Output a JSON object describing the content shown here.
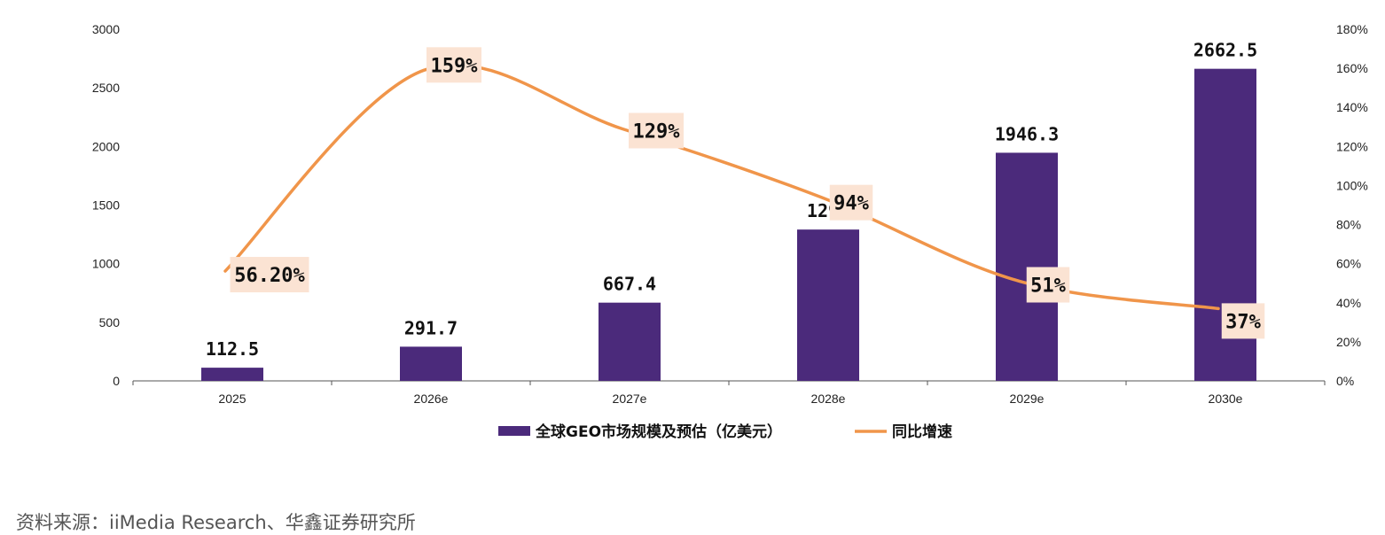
{
  "chart_data": {
    "type": "bar",
    "categories": [
      "2025",
      "2026e",
      "2027e",
      "2028e",
      "2029e",
      "2030e"
    ],
    "series": [
      {
        "name": "全球GEO市场规模及预估（亿美元）",
        "type": "bar",
        "axis": "left",
        "color": "#4b2a7b",
        "values": [
          112.5,
          291.7,
          667.4,
          1291,
          1946.3,
          2662.5
        ],
        "labels": [
          "112.5",
          "291.7",
          "667.4",
          "1291",
          "1946.3",
          "2662.5"
        ]
      },
      {
        "name": "同比增速",
        "type": "line",
        "axis": "right",
        "color": "#f0954a",
        "values": [
          56.2,
          159,
          129,
          94,
          51,
          37
        ],
        "labels": [
          "56.20%",
          "159%",
          "129%",
          "94%",
          "51%",
          "37%"
        ],
        "label_background": "#fbe3d3"
      }
    ],
    "left_axis": {
      "ylim": [
        0,
        3000
      ],
      "ticks": [
        "0",
        "500",
        "1000",
        "1500",
        "2000",
        "2500",
        "3000"
      ]
    },
    "right_axis": {
      "ylim": [
        0,
        180
      ],
      "ticks": [
        "0%",
        "20%",
        "40%",
        "60%",
        "80%",
        "100%",
        "120%",
        "140%",
        "160%",
        "180%"
      ]
    },
    "grid": false,
    "legend": "bottom"
  },
  "source_text": "资料来源：iiMedia Research、华鑫证券研究所"
}
